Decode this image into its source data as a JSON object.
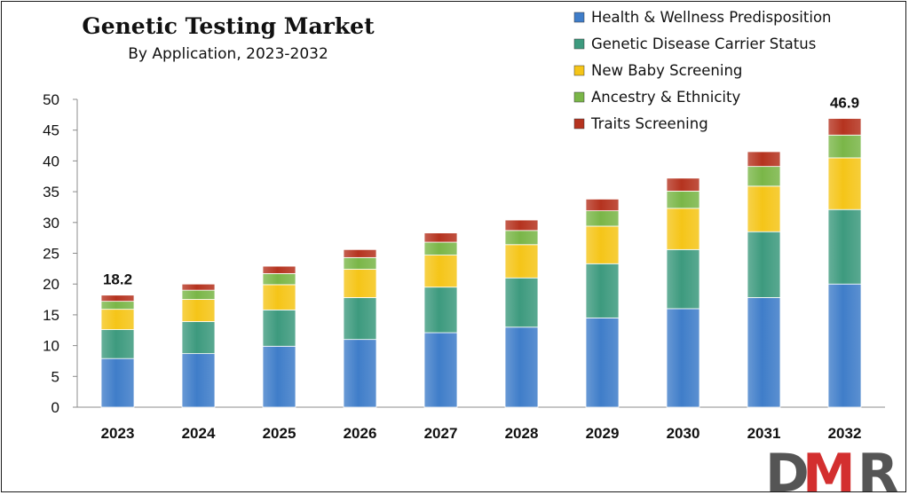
{
  "chart_data": {
    "type": "bar",
    "stacked": true,
    "title": "Genetic Testing Market",
    "subtitle": "By Application, 2023-2032",
    "xlabel": "",
    "ylabel": "",
    "ylim": [
      0,
      50
    ],
    "yticks": [
      0,
      5,
      10,
      15,
      20,
      25,
      30,
      35,
      40,
      45,
      50
    ],
    "grid": false,
    "legend_position": "top-right",
    "categories": [
      "2023",
      "2024",
      "2025",
      "2026",
      "2027",
      "2028",
      "2029",
      "2030",
      "2031",
      "2032"
    ],
    "series": [
      {
        "name": "Health & Wellness Predisposition",
        "color": "#3f7dc9",
        "values": [
          7.9,
          8.7,
          9.9,
          11.0,
          12.1,
          13.0,
          14.5,
          16.0,
          17.8,
          20.0
        ]
      },
      {
        "name": "Genetic Disease Carrier Status",
        "color": "#3d9a7e",
        "values": [
          4.7,
          5.2,
          5.9,
          6.8,
          7.4,
          8.0,
          8.8,
          9.6,
          10.7,
          12.1
        ]
      },
      {
        "name": "New Baby Screening",
        "color": "#f5c518",
        "values": [
          3.3,
          3.6,
          4.1,
          4.6,
          5.2,
          5.4,
          6.1,
          6.7,
          7.4,
          8.4
        ]
      },
      {
        "name": "Ancestry & Ethnicity",
        "color": "#7ab648",
        "values": [
          1.3,
          1.5,
          1.8,
          1.9,
          2.1,
          2.3,
          2.5,
          2.8,
          3.2,
          3.7
        ]
      },
      {
        "name": "Traits Screening",
        "color": "#b5331f",
        "values": [
          1.0,
          1.0,
          1.2,
          1.3,
          1.5,
          1.7,
          1.9,
          2.1,
          2.4,
          2.7
        ]
      }
    ],
    "data_labels": [
      {
        "category": "2023",
        "text": "18.2"
      },
      {
        "category": "2032",
        "text": "46.9"
      }
    ]
  },
  "logo": {
    "text": "DMR",
    "colors": {
      "d": "#555555",
      "m": "#d32f2f",
      "r": "#555555"
    }
  }
}
